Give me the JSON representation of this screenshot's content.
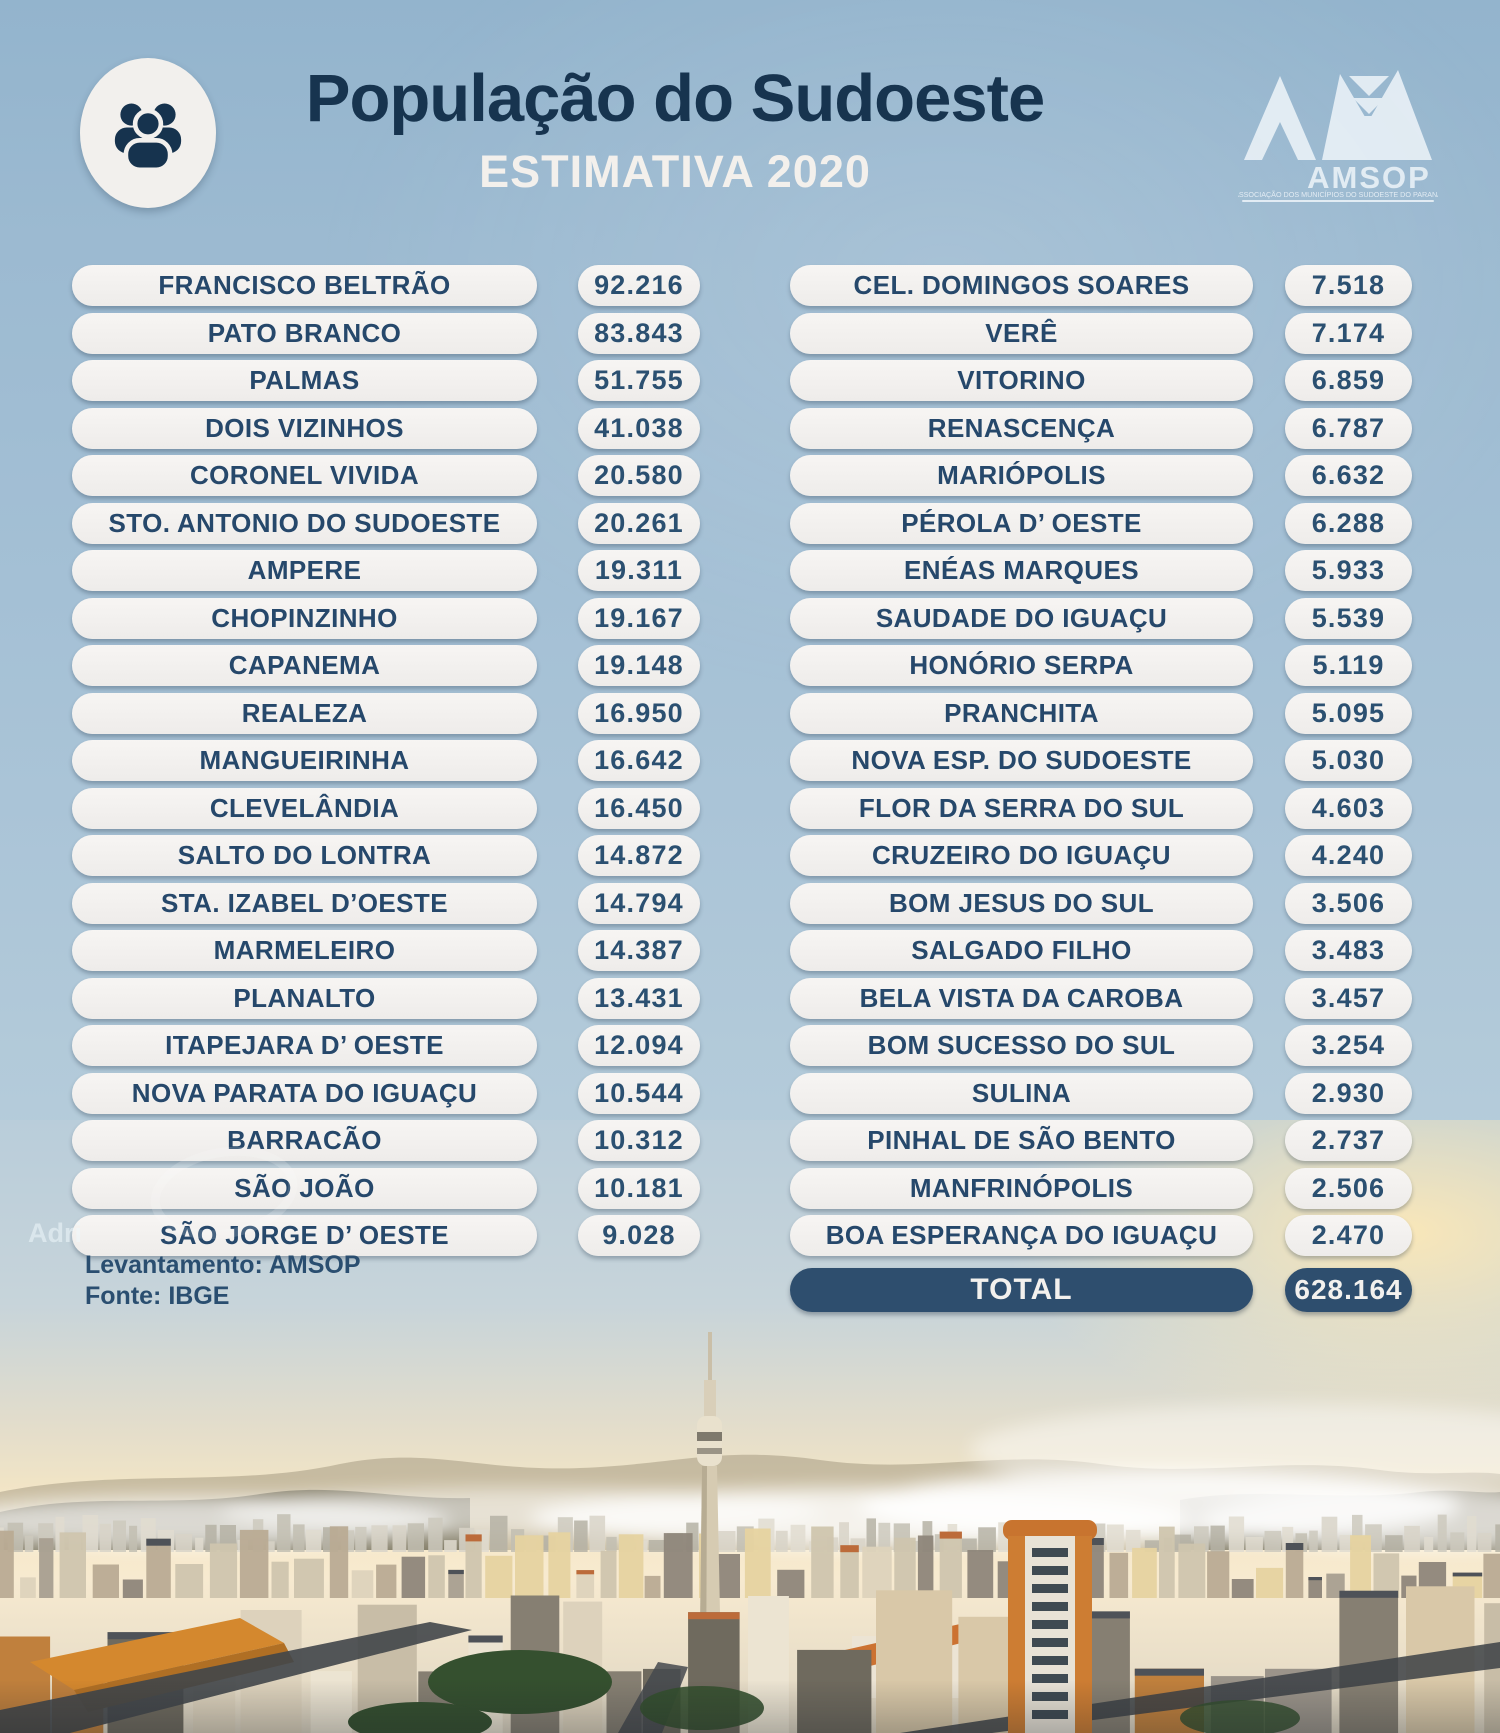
{
  "header": {
    "title": "População do Sudoeste",
    "subtitle": "ESTIMATIVA 2020",
    "logo": {
      "acronym": "AMSOP",
      "caption": "ASSOCIAÇÃO DOS MUNICÍPIOS DO SUDOESTE DO PARANÁ"
    }
  },
  "chart_data": {
    "type": "table",
    "title": "População do Sudoeste",
    "subtitle": "Estimativa 2020",
    "left_column": [
      {
        "name": "FRANCISCO BELTRÃO",
        "value": "92.216"
      },
      {
        "name": "PATO BRANCO",
        "value": "83.843"
      },
      {
        "name": "PALMAS",
        "value": "51.755"
      },
      {
        "name": "DOIS VIZINHOS",
        "value": "41.038"
      },
      {
        "name": "CORONEL VIVIDA",
        "value": "20.580"
      },
      {
        "name": "STO. ANTONIO DO SUDOESTE",
        "value": "20.261"
      },
      {
        "name": "AMPERE",
        "value": "19.311"
      },
      {
        "name": "CHOPINZINHO",
        "value": "19.167"
      },
      {
        "name": "CAPANEMA",
        "value": "19.148"
      },
      {
        "name": "REALEZA",
        "value": "16.950"
      },
      {
        "name": "MANGUEIRINHA",
        "value": "16.642"
      },
      {
        "name": "CLEVELÂNDIA",
        "value": "16.450"
      },
      {
        "name": "SALTO DO LONTRA",
        "value": "14.872"
      },
      {
        "name": "STA. IZABEL D’OESTE",
        "value": "14.794"
      },
      {
        "name": "MARMELEIRO",
        "value": "14.387"
      },
      {
        "name": "PLANALTO",
        "value": "13.431"
      },
      {
        "name": "ITAPEJARA D’ OESTE",
        "value": "12.094"
      },
      {
        "name": "NOVA PARATA DO IGUAÇU",
        "value": "10.544"
      },
      {
        "name": "BARRACÃO",
        "value": "10.312"
      },
      {
        "name": "SÃO JOÃO",
        "value": "10.181"
      },
      {
        "name": "SÃO JORGE D’ OESTE",
        "value": "9.028"
      }
    ],
    "right_column": [
      {
        "name": "CEL. DOMINGOS SOARES",
        "value": "7.518"
      },
      {
        "name": "VERÊ",
        "value": "7.174"
      },
      {
        "name": "VITORINO",
        "value": "6.859"
      },
      {
        "name": "RENASCENÇA",
        "value": "6.787"
      },
      {
        "name": "MARIÓPOLIS",
        "value": "6.632"
      },
      {
        "name": "PÉROLA D’ OESTE",
        "value": "6.288"
      },
      {
        "name": "ENÉAS MARQUES",
        "value": "5.933"
      },
      {
        "name": "SAUDADE DO IGUAÇU",
        "value": "5.539"
      },
      {
        "name": "HONÓRIO SERPA",
        "value": "5.119"
      },
      {
        "name": "PRANCHITA",
        "value": "5.095"
      },
      {
        "name": "NOVA ESP. DO SUDOESTE",
        "value": "5.030"
      },
      {
        "name": "FLOR DA SERRA DO SUL",
        "value": "4.603"
      },
      {
        "name": "CRUZEIRO DO IGUAÇU",
        "value": "4.240"
      },
      {
        "name": "BOM JESUS DO SUL",
        "value": "3.506"
      },
      {
        "name": "SALGADO FILHO",
        "value": "3.483"
      },
      {
        "name": "BELA VISTA DA CAROBA",
        "value": "3.457"
      },
      {
        "name": "BOM SUCESSO DO SUL",
        "value": "3.254"
      },
      {
        "name": "SULINA",
        "value": "2.930"
      },
      {
        "name": "PINHAL DE SÃO BENTO",
        "value": "2.737"
      },
      {
        "name": "MANFRINÓPOLIS",
        "value": "2.506"
      },
      {
        "name": "BOA ESPERANÇA DO IGUAÇU",
        "value": "2.470"
      }
    ],
    "total": {
      "label": "TOTAL",
      "value": "628.164"
    }
  },
  "footer": {
    "survey": "Levantamento: AMSOP",
    "source": "Fonte: IBGE",
    "watermark": "Adri"
  },
  "colors": {
    "background_blue": "#a4c0d5",
    "pill": "#f3f1ef",
    "text_navy": "#26486b",
    "total_navy": "#2e4e6e",
    "title_navy": "#17344f",
    "subtitle_white": "#f3f0ec"
  }
}
